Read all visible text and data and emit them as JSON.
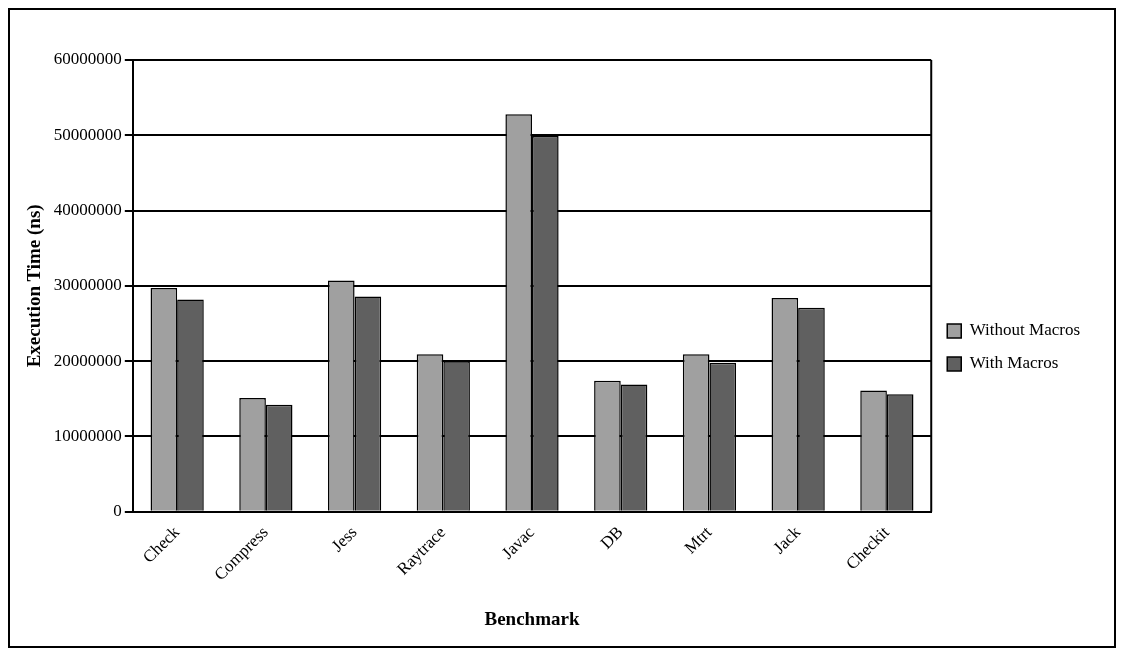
{
  "chart_data": {
    "type": "bar",
    "xlabel": "Benchmark",
    "ylabel": "Execution Time (ns)",
    "categories": [
      "Check",
      "Compress",
      "Jess",
      "Raytrace",
      "Javac",
      "DB",
      "Mtrt",
      "Jack",
      "Checkit"
    ],
    "series": [
      {
        "name": "Without Macros",
        "color": "#a0a0a0",
        "values": [
          29700000,
          15100000,
          30700000,
          20900000,
          52800000,
          17400000,
          20900000,
          28400000,
          16100000
        ]
      },
      {
        "name": "With Macros",
        "color": "#606060",
        "values": [
          28200000,
          14200000,
          28600000,
          20000000,
          49900000,
          16900000,
          19800000,
          27100000,
          15600000
        ]
      }
    ],
    "ylim": [
      0,
      60000000
    ],
    "yticks": [
      0,
      10000000,
      20000000,
      30000000,
      40000000,
      50000000,
      60000000
    ],
    "grid": "y",
    "legend": "right"
  }
}
